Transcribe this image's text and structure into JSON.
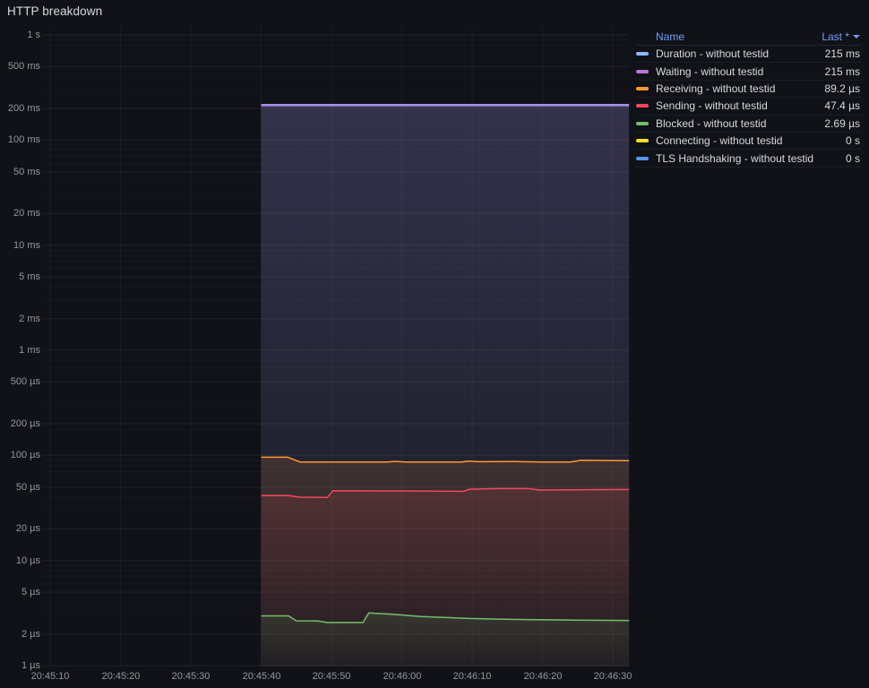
{
  "panel": {
    "title": "HTTP breakdown"
  },
  "legend": {
    "name_header": "Name",
    "last_header": "Last *",
    "sort_icon": "caret-down-icon"
  },
  "colors": {
    "background": "#111217",
    "text": "#d8d9da",
    "link": "#6e9fff",
    "grid": "#ccccdc"
  },
  "chart_data": {
    "type": "line",
    "title": "HTTP breakdown",
    "xlabel": "",
    "ylabel": "",
    "y_scale": "log10",
    "y_unit": "seconds",
    "grid": true,
    "legend_position": "right-table",
    "legend_columns": [
      "Name",
      "Last *"
    ],
    "x_ticks": [
      {
        "t": 10,
        "label": "20:45:10"
      },
      {
        "t": 20,
        "label": "20:45:20"
      },
      {
        "t": 30,
        "label": "20:45:30"
      },
      {
        "t": 40,
        "label": "20:45:40"
      },
      {
        "t": 50,
        "label": "20:45:50"
      },
      {
        "t": 60,
        "label": "20:46:00"
      },
      {
        "t": 70,
        "label": "20:46:10"
      },
      {
        "t": 80,
        "label": "20:46:20"
      },
      {
        "t": 90,
        "label": "20:46:30"
      }
    ],
    "y_ticks": [
      {
        "v": 1000000,
        "label": "1 s"
      },
      {
        "v": 500000,
        "label": "500 ms"
      },
      {
        "v": 200000,
        "label": "200 ms"
      },
      {
        "v": 100000,
        "label": "100 ms"
      },
      {
        "v": 50000,
        "label": "50 ms"
      },
      {
        "v": 20000,
        "label": "20 ms"
      },
      {
        "v": 10000,
        "label": "10 ms"
      },
      {
        "v": 5000,
        "label": "5 ms"
      },
      {
        "v": 2000,
        "label": "2 ms"
      },
      {
        "v": 1000,
        "label": "1 ms"
      },
      {
        "v": 500,
        "label": "500 µs"
      },
      {
        "v": 200,
        "label": "200 µs"
      },
      {
        "v": 100,
        "label": "100 µs"
      },
      {
        "v": 50,
        "label": "50 µs"
      },
      {
        "v": 20,
        "label": "20 µs"
      },
      {
        "v": 10,
        "label": "10 µs"
      },
      {
        "v": 5,
        "label": "5 µs"
      },
      {
        "v": 2,
        "label": "2 µs"
      },
      {
        "v": 1,
        "label": "1 µs"
      }
    ],
    "time_range_shown": [
      "20:45:10",
      "20:46:32"
    ],
    "series": [
      {
        "label": "Duration - without testid",
        "color": "#8ab8ff",
        "last": "215 ms",
        "points_unit": "µs",
        "points": [
          [
            40,
            215000
          ],
          [
            92.3,
            215000
          ]
        ]
      },
      {
        "label": "Waiting - without testid",
        "color": "#b877d9",
        "last": "215 ms",
        "points_unit": "µs",
        "points": [
          [
            40,
            215000
          ],
          [
            92.3,
            215000
          ]
        ]
      },
      {
        "label": "Receiving - without testid",
        "color": "#ff9830",
        "last": "89.2 µs",
        "points_unit": "µs",
        "points": [
          [
            40,
            96
          ],
          [
            43.8,
            96
          ],
          [
            45.5,
            86.5
          ],
          [
            58,
            86.5
          ],
          [
            59,
            87.5
          ],
          [
            60.5,
            86.5
          ],
          [
            68.5,
            86.5
          ],
          [
            69.5,
            88
          ],
          [
            71,
            87
          ],
          [
            76,
            87.2
          ],
          [
            80,
            86.5
          ],
          [
            84,
            86.5
          ],
          [
            85.5,
            90
          ],
          [
            92.3,
            89.2
          ]
        ]
      },
      {
        "label": "Sending - without testid",
        "color": "#f2495c",
        "last": "47.4 µs",
        "points_unit": "µs",
        "points": [
          [
            40,
            41.5
          ],
          [
            43.9,
            41.5
          ],
          [
            45.5,
            40
          ],
          [
            49.4,
            39.8
          ],
          [
            50.2,
            46.1
          ],
          [
            62,
            45.8
          ],
          [
            68.8,
            45.5
          ],
          [
            69.6,
            47.7
          ],
          [
            73.6,
            48.3
          ],
          [
            78,
            48.3
          ],
          [
            79.6,
            46.8
          ],
          [
            92.3,
            47.4
          ]
        ]
      },
      {
        "label": "Blocked - without testid",
        "color": "#73bf69",
        "last": "2.69 µs",
        "points_unit": "µs",
        "points": [
          [
            40,
            2.97
          ],
          [
            43.9,
            2.97
          ],
          [
            45,
            2.67
          ],
          [
            48,
            2.66
          ],
          [
            49.4,
            2.57
          ],
          [
            54.5,
            2.57
          ],
          [
            55.3,
            3.17
          ],
          [
            58.9,
            3.08
          ],
          [
            62.7,
            2.93
          ],
          [
            69.1,
            2.82
          ],
          [
            73.6,
            2.77
          ],
          [
            78,
            2.74
          ],
          [
            84.4,
            2.71
          ],
          [
            92.3,
            2.69
          ]
        ]
      },
      {
        "label": "Connecting - without testid",
        "color": "#fade2a",
        "last": "0 s",
        "points_unit": "µs",
        "points": []
      },
      {
        "label": "TLS Handshaking - without testid",
        "color": "#5794f2",
        "last": "0 s",
        "points_unit": "µs",
        "points": []
      }
    ]
  }
}
